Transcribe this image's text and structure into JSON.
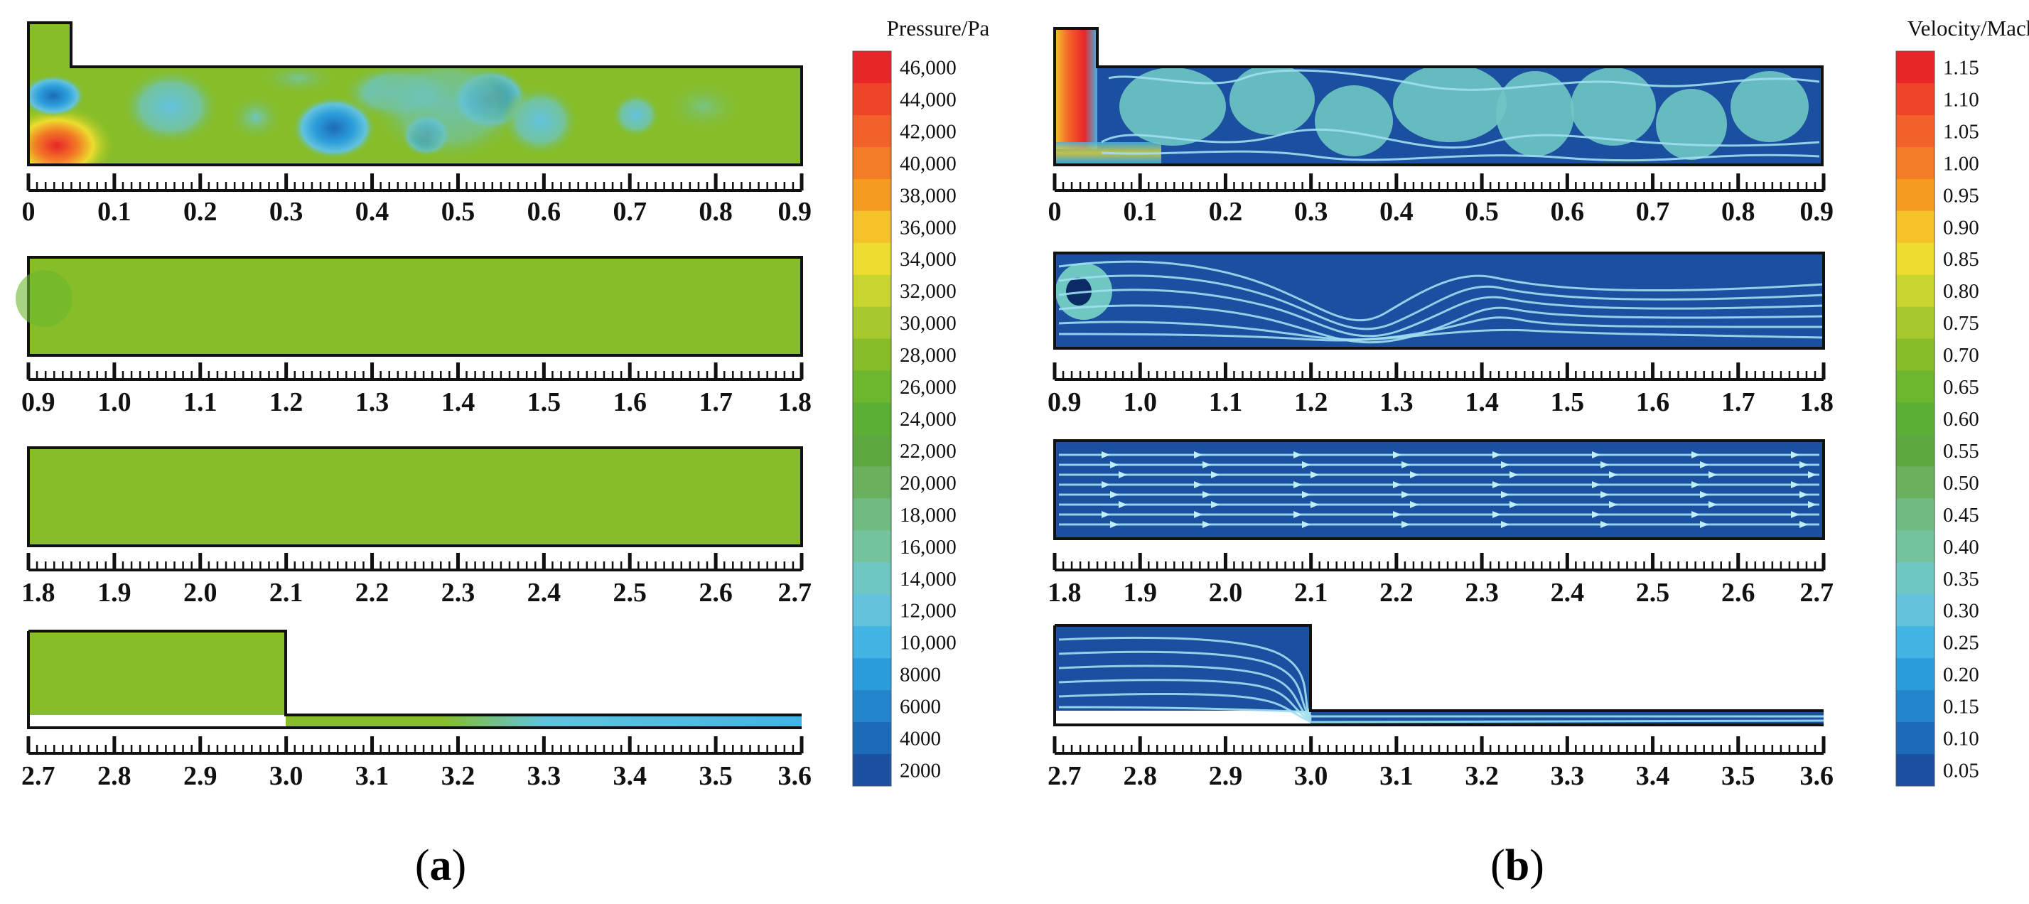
{
  "colors": {
    "pressure_base": "#86bd28",
    "pressure_dark": "#7ab526",
    "velocity_base": "#1b4fa0",
    "streamline": "#9fdff0",
    "frame": "#111111"
  },
  "pressure_scale": {
    "title": "Pressure/Pa",
    "labels": [
      "46,000",
      "44,000",
      "42,000",
      "40,000",
      "38,000",
      "36,000",
      "34,000",
      "32,000",
      "30,000",
      "28,000",
      "26,000",
      "24,000",
      "22,000",
      "20,000",
      "18,000",
      "16,000",
      "14,000",
      "12,000",
      "10,000",
      "8000",
      "6000",
      "4000",
      "2000"
    ],
    "colors": [
      "#e8262a",
      "#ee4428",
      "#f2612a",
      "#f37c26",
      "#f59b22",
      "#f6c22a",
      "#ecdd2e",
      "#c8d530",
      "#a7c82f",
      "#86bd28",
      "#6cb72e",
      "#5dae35",
      "#5ea93f",
      "#6bb05d",
      "#6fbb82",
      "#73c39d",
      "#6fc7c4",
      "#63c3dd",
      "#43b4e4",
      "#2b9ddc",
      "#2385cc",
      "#1d6ab8",
      "#1b4fa0"
    ]
  },
  "velocity_scale": {
    "title": "Velocity/Mach",
    "labels": [
      "1.15",
      "1.10",
      "1.05",
      "1.00",
      "0.95",
      "0.90",
      "0.85",
      "0.80",
      "0.75",
      "0.70",
      "0.65",
      "0.60",
      "0.55",
      "0.50",
      "0.45",
      "0.40",
      "0.35",
      "0.30",
      "0.25",
      "0.20",
      "0.15",
      "0.10",
      "0.05"
    ],
    "colors": [
      "#e8262a",
      "#ee4428",
      "#f2612a",
      "#f37c26",
      "#f59b22",
      "#f6c22a",
      "#ecdd2e",
      "#c8d530",
      "#a7c82f",
      "#86bd28",
      "#6cb72e",
      "#5dae35",
      "#5ea93f",
      "#6bb05d",
      "#6fbb82",
      "#73c39d",
      "#6fc7c4",
      "#63c3dd",
      "#43b4e4",
      "#2b9ddc",
      "#2385cc",
      "#1d6ab8",
      "#1b4fa0"
    ]
  },
  "axes": {
    "row1": [
      "0",
      "0.1",
      "0.2",
      "0.3",
      "0.4",
      "0.5",
      "0.6",
      "0.7",
      "0.8",
      "0.9"
    ],
    "row2": [
      "0.9",
      "1.0",
      "1.1",
      "1.2",
      "1.3",
      "1.4",
      "1.5",
      "1.6",
      "1.7",
      "1.8"
    ],
    "row3": [
      "1.8",
      "1.9",
      "2.0",
      "2.1",
      "2.2",
      "2.3",
      "2.4",
      "2.5",
      "2.6",
      "2.7"
    ],
    "row4": [
      "2.7",
      "2.8",
      "2.9",
      "3.0",
      "3.1",
      "3.2",
      "3.3",
      "3.4",
      "3.5",
      "3.6"
    ]
  },
  "panels": {
    "a": {
      "open": "(",
      "letter": "a",
      "close": ")"
    },
    "b": {
      "open": "(",
      "letter": "b",
      "close": ")"
    }
  }
}
